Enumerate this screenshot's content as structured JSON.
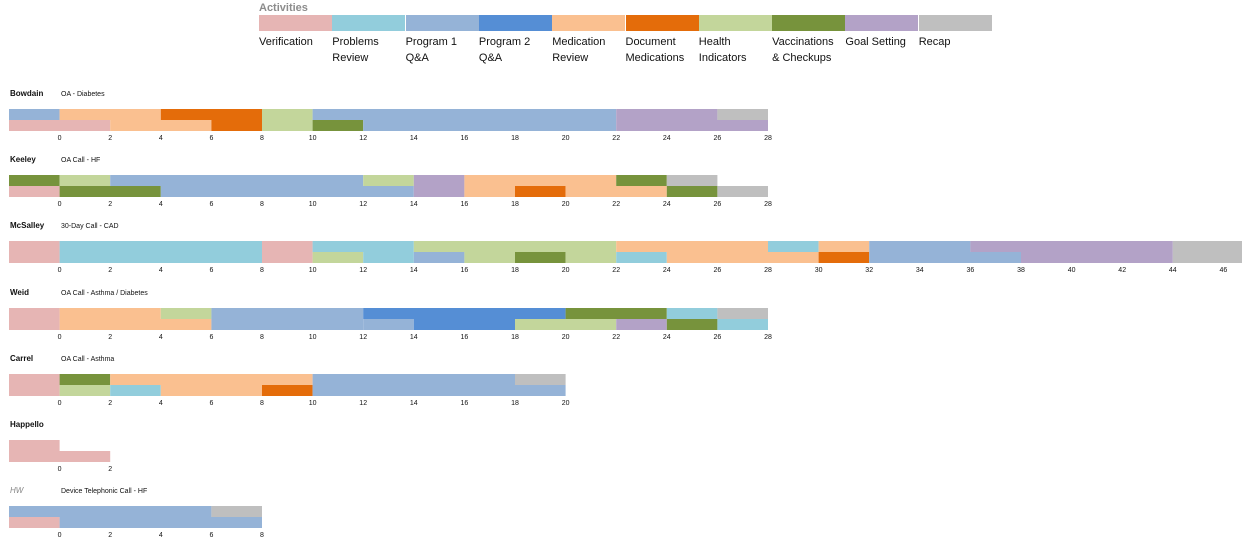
{
  "legend": {
    "title": "Activities",
    "items": [
      {
        "key": "verification",
        "label": "Verification",
        "color": "#e6b5b4"
      },
      {
        "key": "problems",
        "label": "Problems\nReview",
        "color": "#92cddc"
      },
      {
        "key": "p1",
        "label": "Program 1\nQ&A",
        "color": "#95b3d7"
      },
      {
        "key": "p2",
        "label": "Program 2\nQ&A",
        "color": "#558ed5"
      },
      {
        "key": "medrev",
        "label": "Medication\nReview",
        "color": "#fac090"
      },
      {
        "key": "docmed",
        "label": "Document\nMedications",
        "color": "#e46c0a"
      },
      {
        "key": "health",
        "label": "Health\nIndicators",
        "color": "#c3d69b"
      },
      {
        "key": "vacc",
        "label": "Vaccinations\n& Checkups",
        "color": "#77933c"
      },
      {
        "key": "goal",
        "label": "Goal Setting",
        "color": "#b3a2c7"
      },
      {
        "key": "recap",
        "label": "Recap",
        "color": "#bfbfbf"
      }
    ]
  },
  "chart_data": [
    {
      "type": "gantt",
      "name": "Bowdain",
      "subtitle": "OA - Diabetes",
      "xlim": [
        -2,
        28
      ],
      "ticks": [
        0,
        2,
        4,
        6,
        8,
        10,
        12,
        14,
        16,
        18,
        20,
        22,
        24,
        26,
        28
      ],
      "series": [
        {
          "segments": [
            {
              "start": -2,
              "end": 0,
              "activity": "p1"
            },
            {
              "start": 0,
              "end": 4,
              "activity": "medrev"
            },
            {
              "start": 4,
              "end": 8,
              "activity": "docmed"
            },
            {
              "start": 8,
              "end": 10,
              "activity": "health"
            },
            {
              "start": 10,
              "end": 22,
              "activity": "p1"
            },
            {
              "start": 22,
              "end": 26,
              "activity": "goal"
            },
            {
              "start": 26,
              "end": 28,
              "activity": "recap"
            }
          ]
        },
        {
          "segments": [
            {
              "start": -2,
              "end": 2,
              "activity": "verification"
            },
            {
              "start": 2,
              "end": 6,
              "activity": "medrev"
            },
            {
              "start": 6,
              "end": 8,
              "activity": "docmed"
            },
            {
              "start": 8,
              "end": 10,
              "activity": "health"
            },
            {
              "start": 10,
              "end": 12,
              "activity": "vacc"
            },
            {
              "start": 12,
              "end": 22,
              "activity": "p1"
            },
            {
              "start": 22,
              "end": 28,
              "activity": "goal"
            }
          ]
        }
      ]
    },
    {
      "type": "gantt",
      "name": "Keeley",
      "subtitle": "OA Call - HF",
      "xlim": [
        -2,
        28
      ],
      "ticks": [
        0,
        2,
        4,
        6,
        8,
        10,
        12,
        14,
        16,
        18,
        20,
        22,
        24,
        26,
        28
      ],
      "series": [
        {
          "segments": [
            {
              "start": -2,
              "end": 0,
              "activity": "vacc"
            },
            {
              "start": 0,
              "end": 2,
              "activity": "health"
            },
            {
              "start": 2,
              "end": 12,
              "activity": "p1"
            },
            {
              "start": 12,
              "end": 14,
              "activity": "health"
            },
            {
              "start": 14,
              "end": 16,
              "activity": "goal"
            },
            {
              "start": 16,
              "end": 22,
              "activity": "medrev"
            },
            {
              "start": 22,
              "end": 24,
              "activity": "vacc"
            },
            {
              "start": 24,
              "end": 26,
              "activity": "recap"
            }
          ]
        },
        {
          "segments": [
            {
              "start": -2,
              "end": 0,
              "activity": "verification"
            },
            {
              "start": 0,
              "end": 4,
              "activity": "vacc"
            },
            {
              "start": 4,
              "end": 14,
              "activity": "p1"
            },
            {
              "start": 14,
              "end": 16,
              "activity": "goal"
            },
            {
              "start": 16,
              "end": 18,
              "activity": "medrev"
            },
            {
              "start": 18,
              "end": 20,
              "activity": "docmed"
            },
            {
              "start": 20,
              "end": 24,
              "activity": "medrev"
            },
            {
              "start": 24,
              "end": 26,
              "activity": "vacc"
            },
            {
              "start": 26,
              "end": 28,
              "activity": "recap"
            }
          ]
        }
      ]
    },
    {
      "type": "gantt",
      "name": "McSalley",
      "subtitle": "30-Day Call - CAD",
      "xlim": [
        -2,
        48
      ],
      "ticks": [
        0,
        2,
        4,
        6,
        8,
        10,
        12,
        14,
        16,
        18,
        20,
        22,
        24,
        26,
        28,
        30,
        32,
        34,
        36,
        38,
        40,
        42,
        44,
        46,
        48
      ],
      "series": [
        {
          "segments": [
            {
              "start": -2,
              "end": 0,
              "activity": "verification"
            },
            {
              "start": 0,
              "end": 8,
              "activity": "problems"
            },
            {
              "start": 8,
              "end": 10,
              "activity": "verification"
            },
            {
              "start": 10,
              "end": 14,
              "activity": "problems"
            },
            {
              "start": 14,
              "end": 22,
              "activity": "health"
            },
            {
              "start": 22,
              "end": 28,
              "activity": "medrev"
            },
            {
              "start": 28,
              "end": 30,
              "activity": "problems"
            },
            {
              "start": 30,
              "end": 32,
              "activity": "medrev"
            },
            {
              "start": 32,
              "end": 36,
              "activity": "p1"
            },
            {
              "start": 36,
              "end": 44,
              "activity": "goal"
            },
            {
              "start": 44,
              "end": 48,
              "activity": "recap"
            }
          ]
        },
        {
          "segments": [
            {
              "start": -2,
              "end": 0,
              "activity": "verification"
            },
            {
              "start": 0,
              "end": 8,
              "activity": "problems"
            },
            {
              "start": 8,
              "end": 10,
              "activity": "verification"
            },
            {
              "start": 10,
              "end": 12,
              "activity": "health"
            },
            {
              "start": 12,
              "end": 14,
              "activity": "problems"
            },
            {
              "start": 14,
              "end": 16,
              "activity": "p1"
            },
            {
              "start": 16,
              "end": 18,
              "activity": "health"
            },
            {
              "start": 18,
              "end": 20,
              "activity": "vacc"
            },
            {
              "start": 20,
              "end": 22,
              "activity": "health"
            },
            {
              "start": 22,
              "end": 24,
              "activity": "problems"
            },
            {
              "start": 24,
              "end": 30,
              "activity": "medrev"
            },
            {
              "start": 30,
              "end": 32,
              "activity": "docmed"
            },
            {
              "start": 32,
              "end": 38,
              "activity": "p1"
            },
            {
              "start": 38,
              "end": 44,
              "activity": "goal"
            },
            {
              "start": 44,
              "end": 48,
              "activity": "recap"
            }
          ]
        }
      ]
    },
    {
      "type": "gantt",
      "name": "Weid",
      "subtitle": "OA Call - Asthma / Diabetes",
      "xlim": [
        -2,
        28
      ],
      "ticks": [
        0,
        2,
        4,
        6,
        8,
        10,
        12,
        14,
        16,
        18,
        20,
        22,
        24,
        26,
        28
      ],
      "series": [
        {
          "segments": [
            {
              "start": -2,
              "end": 0,
              "activity": "verification"
            },
            {
              "start": 0,
              "end": 4,
              "activity": "medrev"
            },
            {
              "start": 4,
              "end": 6,
              "activity": "health"
            },
            {
              "start": 6,
              "end": 12,
              "activity": "p1"
            },
            {
              "start": 12,
              "end": 20,
              "activity": "p2"
            },
            {
              "start": 20,
              "end": 24,
              "activity": "vacc"
            },
            {
              "start": 24,
              "end": 26,
              "activity": "problems"
            },
            {
              "start": 26,
              "end": 28,
              "activity": "recap"
            }
          ]
        },
        {
          "segments": [
            {
              "start": -2,
              "end": 0,
              "activity": "verification"
            },
            {
              "start": 0,
              "end": 6,
              "activity": "medrev"
            },
            {
              "start": 6,
              "end": 12,
              "activity": "p1"
            },
            {
              "start": 12,
              "end": 14,
              "activity": "p1"
            },
            {
              "start": 14,
              "end": 18,
              "activity": "p2"
            },
            {
              "start": 18,
              "end": 22,
              "activity": "health"
            },
            {
              "start": 22,
              "end": 24,
              "activity": "goal"
            },
            {
              "start": 24,
              "end": 26,
              "activity": "vacc"
            },
            {
              "start": 26,
              "end": 28,
              "activity": "problems"
            }
          ]
        }
      ]
    },
    {
      "type": "gantt",
      "name": "Carrel",
      "subtitle": "OA Call - Asthma",
      "xlim": [
        -2,
        20
      ],
      "ticks": [
        0,
        2,
        4,
        6,
        8,
        10,
        12,
        14,
        16,
        18,
        20
      ],
      "series": [
        {
          "segments": [
            {
              "start": -2,
              "end": 0,
              "activity": "verification"
            },
            {
              "start": 0,
              "end": 2,
              "activity": "vacc"
            },
            {
              "start": 2,
              "end": 10,
              "activity": "medrev"
            },
            {
              "start": 10,
              "end": 18,
              "activity": "p1"
            },
            {
              "start": 18,
              "end": 20,
              "activity": "recap"
            }
          ]
        },
        {
          "segments": [
            {
              "start": -2,
              "end": 0,
              "activity": "verification"
            },
            {
              "start": 0,
              "end": 2,
              "activity": "health"
            },
            {
              "start": 2,
              "end": 4,
              "activity": "problems"
            },
            {
              "start": 4,
              "end": 8,
              "activity": "medrev"
            },
            {
              "start": 8,
              "end": 10,
              "activity": "docmed"
            },
            {
              "start": 10,
              "end": 20,
              "activity": "p1"
            }
          ]
        }
      ]
    },
    {
      "type": "gantt",
      "name": "Happello",
      "subtitle": "",
      "xlim": [
        -2,
        2
      ],
      "ticks": [
        0,
        2
      ],
      "series": [
        {
          "segments": [
            {
              "start": -2,
              "end": 0,
              "activity": "verification"
            }
          ]
        },
        {
          "segments": [
            {
              "start": -2,
              "end": 2,
              "activity": "verification"
            }
          ]
        }
      ]
    },
    {
      "type": "gantt",
      "name": "HW",
      "subtitle": "Device Telephonic Call - HF",
      "xlim": [
        -2,
        8
      ],
      "ticks": [
        0,
        2,
        4,
        6,
        8
      ],
      "nameItalicGray": true,
      "series": [
        {
          "segments": [
            {
              "start": -2,
              "end": 6,
              "activity": "p1"
            },
            {
              "start": 6,
              "end": 8,
              "activity": "recap"
            }
          ]
        },
        {
          "segments": [
            {
              "start": -2,
              "end": 0,
              "activity": "verification"
            },
            {
              "start": 0,
              "end": 8,
              "activity": "p1"
            }
          ]
        }
      ]
    }
  ]
}
